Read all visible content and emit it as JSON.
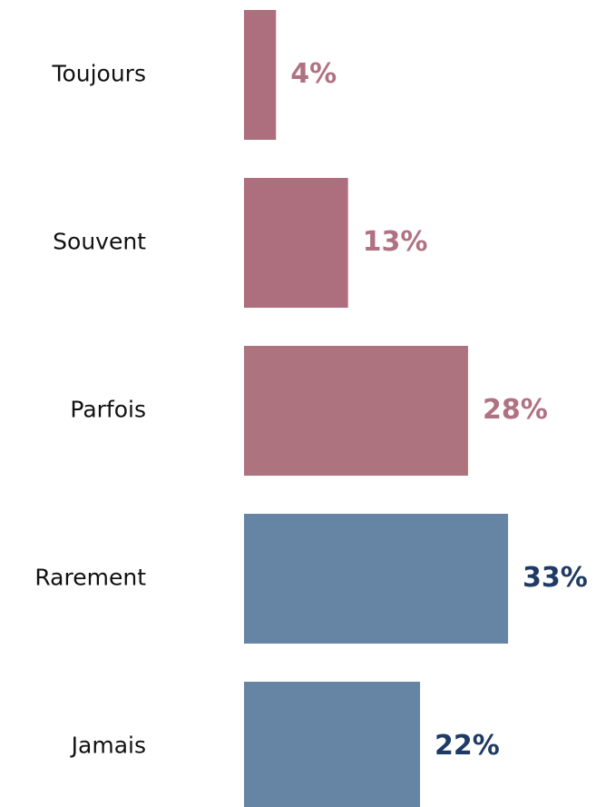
{
  "chart_data": {
    "type": "bar",
    "orientation": "horizontal",
    "categories": [
      "Toujours",
      "Souvent",
      "Parfois",
      "Rarement",
      "Jamais"
    ],
    "values": [
      4,
      13,
      28,
      33,
      22
    ],
    "value_labels": [
      "4%",
      "13%",
      "28%",
      "33%",
      "22%"
    ],
    "colors": [
      "#ad6e7e",
      "#ad6e7e",
      "#ad7480",
      "#6685a4",
      "#6685a4"
    ],
    "label_colors": [
      "#b07282",
      "#b07282",
      "#b07282",
      "#1f3a64",
      "#1f3a64"
    ]
  }
}
